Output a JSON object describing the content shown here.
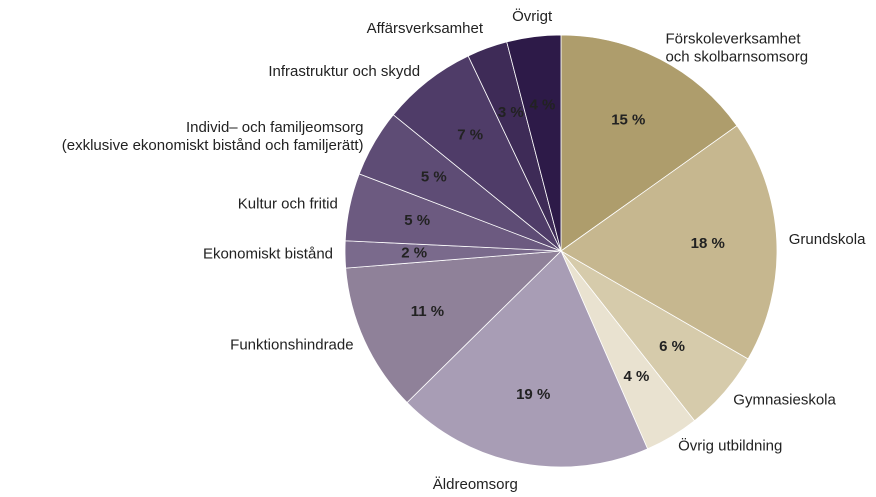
{
  "chart_data": {
    "type": "pie",
    "categories": [
      "Förskoleverksamhet\noch skolbarnsomsorg",
      "Grundskola",
      "Gymnasieskola",
      "Övrig utbildning",
      "Äldreomsorg",
      "Funktionshindrade",
      "Ekonomiskt bistånd",
      "Kultur och fritid",
      "Individ– och familjeomsorg\n(exklusive ekonomiskt bistånd och familjerätt)",
      "Infrastruktur och skydd",
      "Affärsverksamhet",
      "Övrigt"
    ],
    "values": [
      15,
      18,
      6,
      4,
      19,
      11,
      2,
      5,
      5,
      7,
      3,
      4
    ],
    "value_labels": [
      "15 %",
      "18 %",
      "6 %",
      "4 %",
      "19 %",
      "11 %",
      "2 %",
      "5 %",
      "5 %",
      "7 %",
      "3 %",
      "4 %"
    ],
    "colors": [
      "#ae9d6c",
      "#c6b78f",
      "#d6cbab",
      "#e9e2d0",
      "#a89db5",
      "#8f8199",
      "#7a6a8c",
      "#6c5a80",
      "#5e4c75",
      "#4f3c68",
      "#3e2b57",
      "#2d1a48"
    ]
  }
}
